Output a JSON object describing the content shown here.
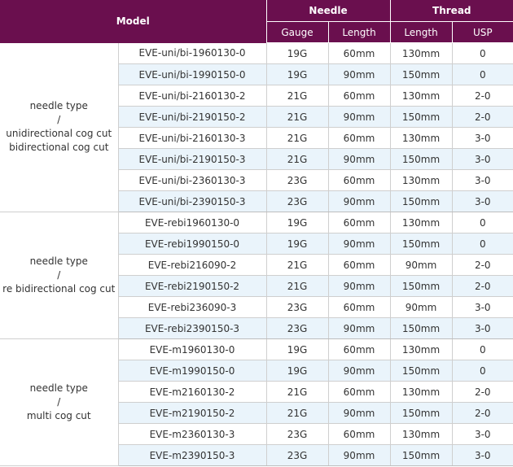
{
  "header": {
    "model": "Model",
    "needle": "Needle",
    "thread": "Thread",
    "gauge": "Gauge",
    "needle_length": "Length",
    "thread_length": "Length",
    "usp": "USP"
  },
  "groups": [
    {
      "label_lines": [
        "needle type",
        "/",
        "unidirectional cog cut",
        "bidirectional cog cut"
      ],
      "rows": [
        {
          "model": "EVE-uni/bi-1960130-0",
          "gauge": "19G",
          "needle_length": "60mm",
          "thread_length": "130mm",
          "usp": "0"
        },
        {
          "model": "EVE-uni/bi-1990150-0",
          "gauge": "19G",
          "needle_length": "90mm",
          "thread_length": "150mm",
          "usp": "0"
        },
        {
          "model": "EVE-uni/bi-2160130-2",
          "gauge": "21G",
          "needle_length": "60mm",
          "thread_length": "130mm",
          "usp": "2-0"
        },
        {
          "model": "EVE-uni/bi-2190150-2",
          "gauge": "21G",
          "needle_length": "90mm",
          "thread_length": "150mm",
          "usp": "2-0"
        },
        {
          "model": "EVE-uni/bi-2160130-3",
          "gauge": "21G",
          "needle_length": "60mm",
          "thread_length": "130mm",
          "usp": "3-0"
        },
        {
          "model": "EVE-uni/bi-2190150-3",
          "gauge": "21G",
          "needle_length": "90mm",
          "thread_length": "150mm",
          "usp": "3-0"
        },
        {
          "model": "EVE-uni/bi-2360130-3",
          "gauge": "23G",
          "needle_length": "60mm",
          "thread_length": "130mm",
          "usp": "3-0"
        },
        {
          "model": "EVE-uni/bi-2390150-3",
          "gauge": "23G",
          "needle_length": "90mm",
          "thread_length": "150mm",
          "usp": "3-0"
        }
      ]
    },
    {
      "label_lines": [
        "needle type",
        "/",
        "re bidirectional cog cut"
      ],
      "rows": [
        {
          "model": "EVE-rebi1960130-0",
          "gauge": "19G",
          "needle_length": "60mm",
          "thread_length": "130mm",
          "usp": "0"
        },
        {
          "model": "EVE-rebi1990150-0",
          "gauge": "19G",
          "needle_length": "90mm",
          "thread_length": "150mm",
          "usp": "0"
        },
        {
          "model": "EVE-rebi216090-2",
          "gauge": "21G",
          "needle_length": "60mm",
          "thread_length": "90mm",
          "usp": "2-0"
        },
        {
          "model": "EVE-rebi2190150-2",
          "gauge": "21G",
          "needle_length": "90mm",
          "thread_length": "150mm",
          "usp": "2-0"
        },
        {
          "model": "EVE-rebi236090-3",
          "gauge": "23G",
          "needle_length": "60mm",
          "thread_length": "90mm",
          "usp": "3-0"
        },
        {
          "model": "EVE-rebi2390150-3",
          "gauge": "23G",
          "needle_length": "90mm",
          "thread_length": "150mm",
          "usp": "3-0"
        }
      ]
    },
    {
      "label_lines": [
        "needle type",
        "/",
        "multi cog cut"
      ],
      "rows": [
        {
          "model": "EVE-m1960130-0",
          "gauge": "19G",
          "needle_length": "60mm",
          "thread_length": "130mm",
          "usp": "0"
        },
        {
          "model": "EVE-m1990150-0",
          "gauge": "19G",
          "needle_length": "90mm",
          "thread_length": "150mm",
          "usp": "0"
        },
        {
          "model": "EVE-m2160130-2",
          "gauge": "21G",
          "needle_length": "60mm",
          "thread_length": "130mm",
          "usp": "2-0"
        },
        {
          "model": "EVE-m2190150-2",
          "gauge": "21G",
          "needle_length": "90mm",
          "thread_length": "150mm",
          "usp": "2-0"
        },
        {
          "model": "EVE-m2360130-3",
          "gauge": "23G",
          "needle_length": "60mm",
          "thread_length": "130mm",
          "usp": "3-0"
        },
        {
          "model": "EVE-m2390150-3",
          "gauge": "23G",
          "needle_length": "90mm",
          "thread_length": "150mm",
          "usp": "3-0"
        }
      ]
    }
  ],
  "colors": {
    "header_bg": "#6a0f4e",
    "alt_row_bg": "#eaf4fb"
  }
}
